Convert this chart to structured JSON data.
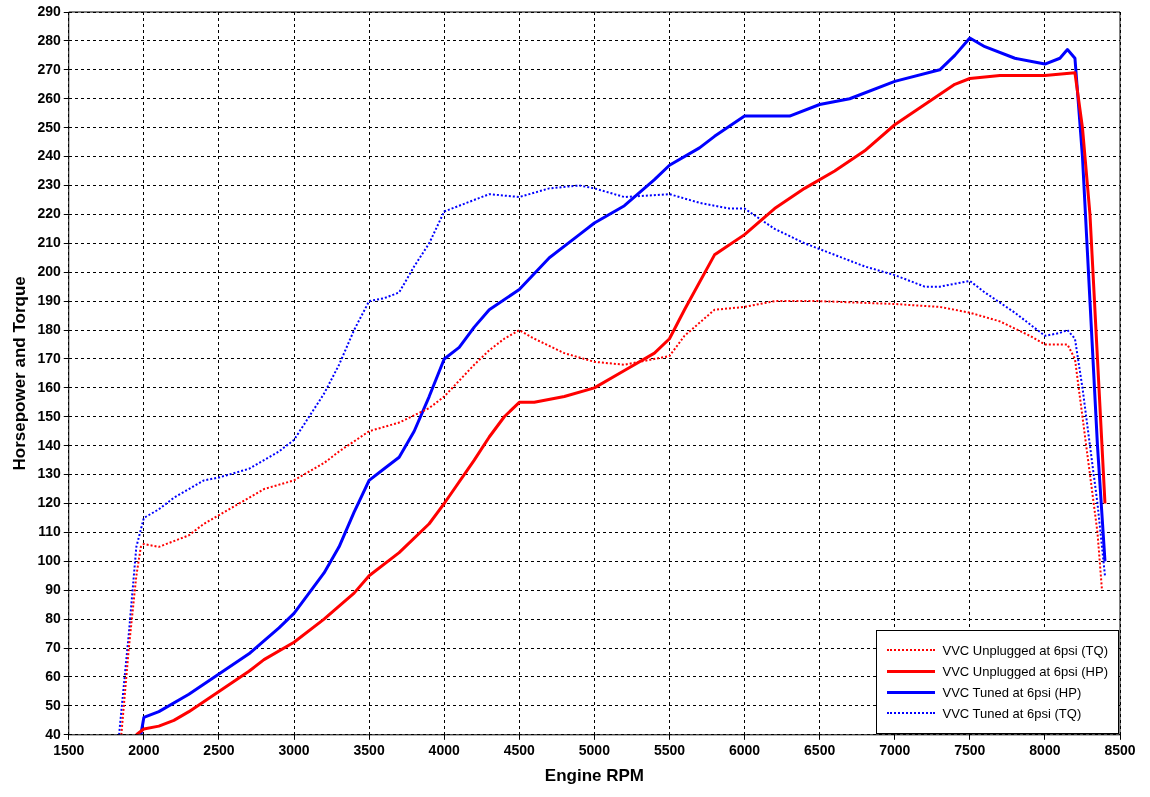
{
  "chart_data": {
    "type": "line",
    "xlabel": "Engine RPM",
    "ylabel": "Horsepower and Torque",
    "xlim": [
      1500,
      8500
    ],
    "xticks": [
      1500,
      2000,
      2500,
      3000,
      3500,
      4000,
      4500,
      5000,
      5500,
      6000,
      6500,
      7000,
      7500,
      8000,
      8500
    ],
    "ylim": [
      40,
      290
    ],
    "yticks": [
      40,
      50,
      60,
      70,
      80,
      90,
      100,
      110,
      120,
      130,
      140,
      150,
      160,
      170,
      180,
      190,
      200,
      210,
      220,
      230,
      240,
      250,
      260,
      270,
      280,
      290
    ],
    "grid": true,
    "legend": "bottom right",
    "series": [
      {
        "name": "VVC Unplugged at 6psi (TQ)",
        "color": "#ff0000",
        "line_style": "dotted",
        "x": [
          1850,
          1900,
          1950,
          1980,
          2000,
          2100,
          2200,
          2300,
          2400,
          2500,
          2700,
          2800,
          3000,
          3200,
          3300,
          3500,
          3700,
          3900,
          4000,
          4200,
          4300,
          4400,
          4500,
          4600,
          4800,
          5000,
          5200,
          5500,
          5600,
          5800,
          6000,
          6200,
          6500,
          7000,
          7300,
          7500,
          7700,
          7900,
          8000,
          8150,
          8200,
          8250,
          8300,
          8350,
          8380
        ],
        "values": [
          40,
          70,
          95,
          105,
          106,
          105,
          107,
          109,
          113,
          116,
          122,
          125,
          128,
          134,
          138,
          145,
          148,
          153,
          157,
          168,
          173,
          177,
          180,
          177,
          172,
          169,
          168,
          171,
          178,
          187,
          188,
          190,
          190,
          189,
          188,
          186,
          183,
          178,
          175,
          175,
          170,
          150,
          130,
          110,
          90
        ]
      },
      {
        "name": "VVC Unplugged at 6psi (HP)",
        "color": "#ff0000",
        "line_style": "solid",
        "x": [
          1950,
          2000,
          2100,
          2200,
          2300,
          2500,
          2700,
          2800,
          3000,
          3200,
          3400,
          3500,
          3700,
          3900,
          4000,
          4200,
          4300,
          4400,
          4500,
          4600,
          4800,
          5000,
          5200,
          5400,
          5500,
          5600,
          5800,
          6000,
          6200,
          6400,
          6600,
          6800,
          7000,
          7200,
          7400,
          7500,
          7700,
          8000,
          8200,
          8250,
          8300,
          8350,
          8400
        ],
        "values": [
          40,
          42,
          43,
          45,
          48,
          55,
          62,
          66,
          72,
          80,
          89,
          95,
          103,
          113,
          120,
          135,
          143,
          150,
          155,
          155,
          157,
          160,
          166,
          172,
          177,
          187,
          206,
          213,
          222,
          229,
          235,
          242,
          251,
          258,
          265,
          267,
          268,
          268,
          269,
          250,
          220,
          170,
          120
        ]
      },
      {
        "name": "VVC Tuned at 6psi (HP)",
        "color": "#0000ff",
        "line_style": "solid",
        "x": [
          1980,
          2000,
          2100,
          2300,
          2500,
          2700,
          2900,
          3000,
          3200,
          3300,
          3400,
          3500,
          3600,
          3700,
          3800,
          3900,
          4000,
          4100,
          4200,
          4300,
          4500,
          4700,
          4900,
          5000,
          5200,
          5400,
          5500,
          5700,
          5800,
          6000,
          6300,
          6500,
          6700,
          7000,
          7300,
          7400,
          7500,
          7600,
          7800,
          8000,
          8100,
          8150,
          8200,
          8250,
          8300,
          8350,
          8400
        ],
        "values": [
          40,
          46,
          48,
          54,
          61,
          68,
          77,
          82,
          96,
          105,
          117,
          128,
          132,
          136,
          145,
          157,
          170,
          174,
          181,
          187,
          194,
          205,
          213,
          217,
          223,
          232,
          237,
          243,
          247,
          254,
          254,
          258,
          260,
          266,
          270,
          275,
          281,
          278,
          274,
          272,
          274,
          277,
          274,
          240,
          190,
          140,
          100
        ]
      },
      {
        "name": "VVC Tuned at 6psi (TQ)",
        "color": "#0000ff",
        "line_style": "dotted",
        "x": [
          1835,
          1900,
          1950,
          2000,
          2100,
          2200,
          2300,
          2400,
          2500,
          2700,
          2900,
          3000,
          3100,
          3200,
          3300,
          3400,
          3500,
          3600,
          3700,
          3800,
          3900,
          4000,
          4100,
          4300,
          4500,
          4700,
          4900,
          5000,
          5200,
          5500,
          5700,
          5900,
          6000,
          6200,
          6400,
          6600,
          6800,
          7000,
          7200,
          7300,
          7500,
          7600,
          7800,
          8000,
          8100,
          8150,
          8200,
          8250,
          8300,
          8350,
          8400
        ],
        "values": [
          40,
          75,
          105,
          115,
          118,
          122,
          125,
          128,
          129,
          132,
          138,
          142,
          150,
          158,
          168,
          180,
          190,
          191,
          193,
          202,
          210,
          221,
          223,
          227,
          226,
          229,
          230,
          229,
          226,
          227,
          224,
          222,
          222,
          215,
          210,
          206,
          202,
          199,
          195,
          195,
          197,
          193,
          186,
          178,
          179,
          180,
          177,
          160,
          140,
          120,
          95
        ]
      }
    ]
  }
}
